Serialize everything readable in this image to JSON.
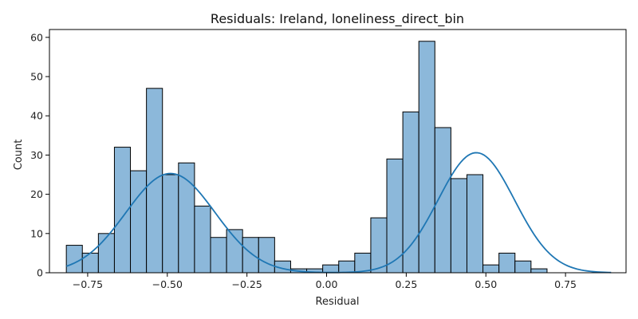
{
  "chart_data": {
    "type": "bar",
    "subtype": "histogram-with-kde",
    "title": "Residuals: Ireland, loneliness_direct_bin",
    "xlabel": "Residual",
    "ylabel": "Count",
    "xlim": [
      -0.87,
      0.94
    ],
    "ylim": [
      0,
      62
    ],
    "xticks": [
      -0.75,
      -0.5,
      -0.25,
      0.0,
      0.25,
      0.5,
      0.75
    ],
    "xtick_labels": [
      "−0.75",
      "−0.50",
      "−0.25",
      "0.00",
      "0.25",
      "0.50",
      "0.75"
    ],
    "yticks": [
      0,
      10,
      20,
      30,
      40,
      50,
      60
    ],
    "ytick_labels": [
      "0",
      "10",
      "20",
      "30",
      "40",
      "50",
      "60"
    ],
    "bin_start": -0.817,
    "bin_width": 0.0503,
    "counts": [
      7,
      5,
      10,
      32,
      26,
      47,
      25,
      28,
      17,
      9,
      11,
      9,
      9,
      3,
      1,
      1,
      2,
      3,
      5,
      14,
      29,
      41,
      59,
      37,
      24,
      25,
      2,
      5,
      3,
      1
    ],
    "kde": {
      "x_range": [
        -0.817,
        0.893
      ],
      "components": [
        {
          "mean": -0.49,
          "sd": 0.14,
          "peak": 25.3
        },
        {
          "mean": 0.47,
          "sd": 0.12,
          "peak": 30.6
        }
      ]
    },
    "colors": {
      "bar_fill": "#8cb8da",
      "bar_edge": "#000000",
      "kde_line": "#1f77b4"
    },
    "grid": false,
    "legend": "none"
  }
}
